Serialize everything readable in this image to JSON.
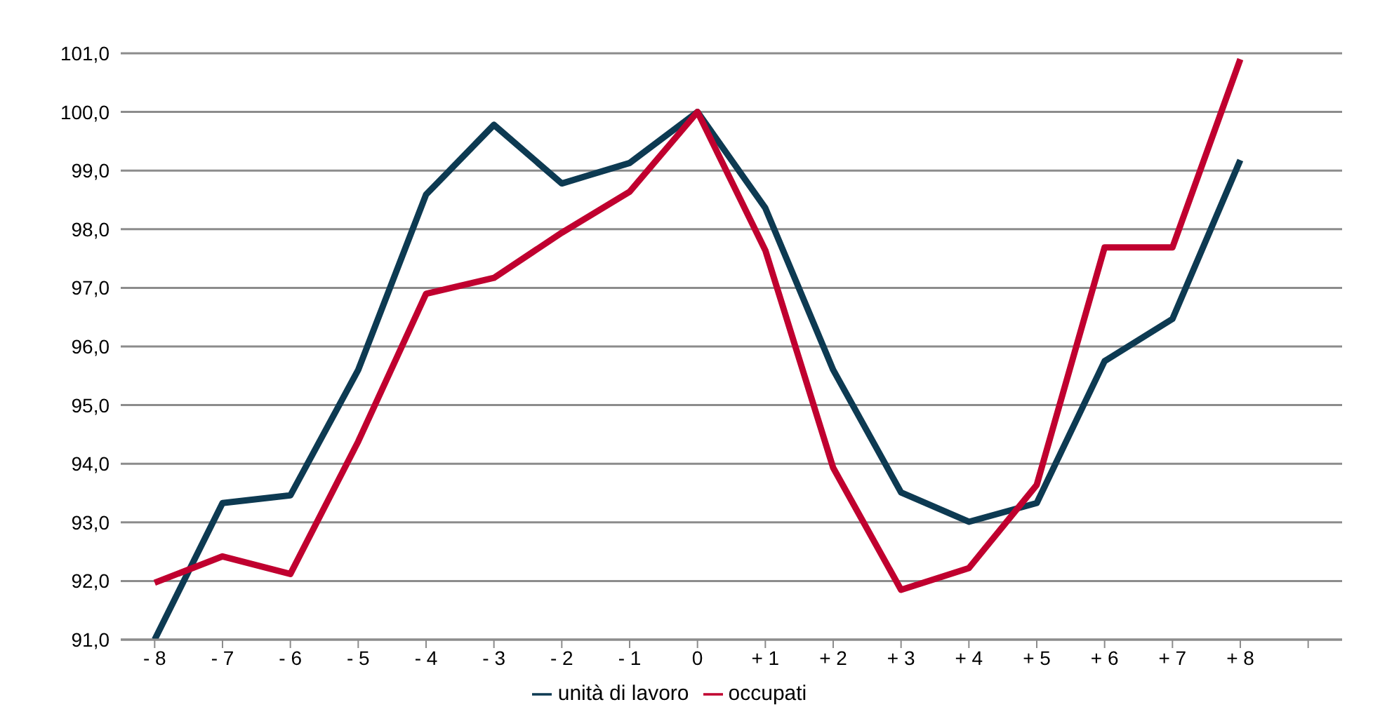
{
  "chart_data": {
    "type": "line",
    "categories": [
      "- 8",
      "- 7",
      "- 6",
      "- 5",
      "- 4",
      "- 3",
      "- 2",
      "- 1",
      "0",
      "+ 1",
      "+ 2",
      "+ 3",
      "+ 4",
      "+ 5",
      "+ 6",
      "+ 7",
      "+ 8",
      null
    ],
    "series": [
      {
        "name": "unità di lavoro",
        "color": "#0d3a52",
        "values": [
          91.0,
          93.33,
          93.46,
          95.6,
          98.59,
          99.78,
          98.78,
          99.13,
          100.0,
          98.36,
          95.6,
          93.51,
          93.01,
          93.33,
          95.75,
          96.47,
          99.18,
          null
        ]
      },
      {
        "name": "occupati",
        "color": "#c0002f",
        "values": [
          91.97,
          92.42,
          92.12,
          94.38,
          96.9,
          97.17,
          97.94,
          98.64,
          100.0,
          97.64,
          93.93,
          91.85,
          92.22,
          93.64,
          97.69,
          97.69,
          100.9,
          null
        ]
      }
    ],
    "ylim": [
      91,
      101
    ],
    "yticks": [
      {
        "value": 91,
        "label": "91,0"
      },
      {
        "value": 92,
        "label": "92,0"
      },
      {
        "value": 93,
        "label": "93,0"
      },
      {
        "value": 94,
        "label": "94,0"
      },
      {
        "value": 95,
        "label": "95,0"
      },
      {
        "value": 96,
        "label": "96,0"
      },
      {
        "value": 97,
        "label": "97,0"
      },
      {
        "value": 98,
        "label": "98,0"
      },
      {
        "value": 99,
        "label": "99,0"
      },
      {
        "value": 100,
        "label": "100,0"
      },
      {
        "value": 101,
        "label": "101,0"
      }
    ],
    "grid": "y",
    "legend": "bottom",
    "marker": "none",
    "line_style": "solid"
  }
}
